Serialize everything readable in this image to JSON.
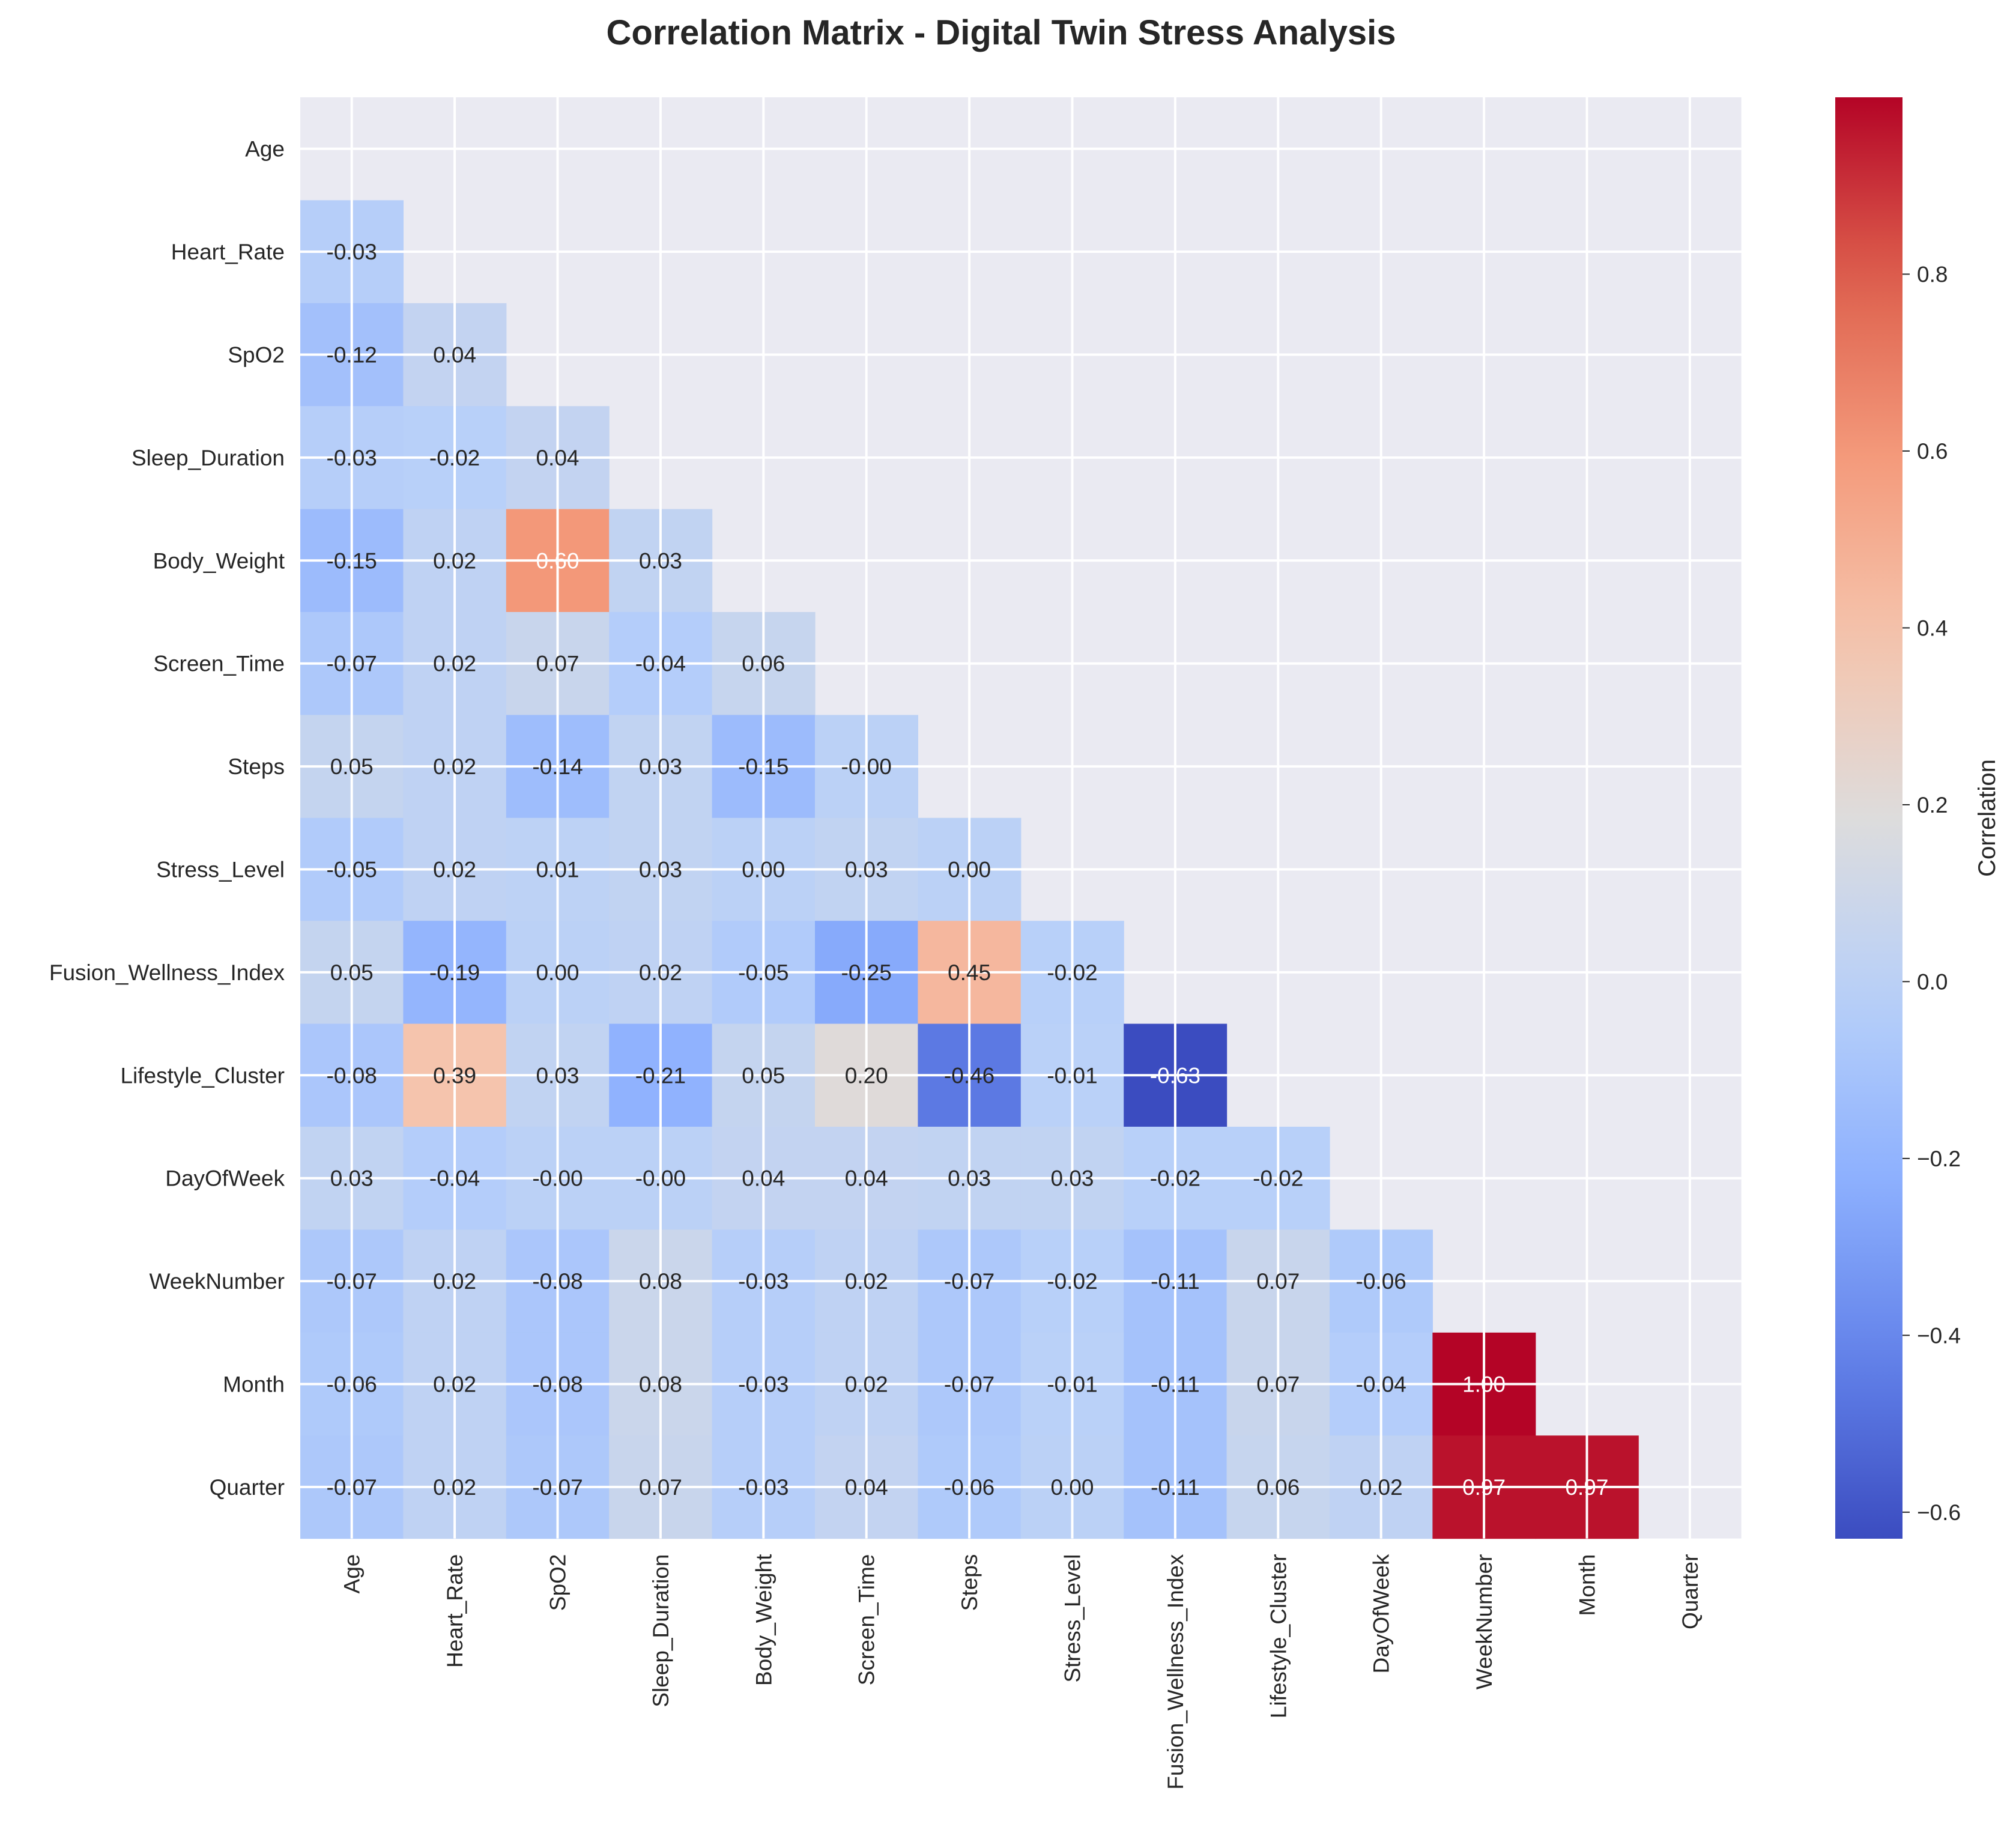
{
  "chart_data": {
    "type": "heatmap",
    "title": "Correlation Matrix - Digital Twin Stress Analysis",
    "variables": [
      "Age",
      "Heart_Rate",
      "SpO2",
      "Sleep_Duration",
      "Body_Weight",
      "Screen_Time",
      "Steps",
      "Stress_Level",
      "Fusion_Wellness_Index",
      "Lifestyle_Cluster",
      "DayOfWeek",
      "WeekNumber",
      "Month",
      "Quarter"
    ],
    "mask": "upper-triangle-and-diagonal",
    "rows": [
      [],
      [
        "-0.03"
      ],
      [
        "-0.12",
        "0.04"
      ],
      [
        "-0.03",
        "-0.02",
        "0.04"
      ],
      [
        "-0.15",
        "0.02",
        "0.60",
        "0.03"
      ],
      [
        "-0.07",
        "0.02",
        "0.07",
        "-0.04",
        "0.06"
      ],
      [
        "0.05",
        "0.02",
        "-0.14",
        "0.03",
        "-0.15",
        "-0.00"
      ],
      [
        "-0.05",
        "0.02",
        "0.01",
        "0.03",
        "0.00",
        "0.03",
        "0.00"
      ],
      [
        "0.05",
        "-0.19",
        "0.00",
        "0.02",
        "-0.05",
        "-0.25",
        "0.45",
        "-0.02"
      ],
      [
        "-0.08",
        "0.39",
        "0.03",
        "-0.21",
        "0.05",
        "0.20",
        "-0.46",
        "-0.01",
        "-0.63"
      ],
      [
        "0.03",
        "-0.04",
        "-0.00",
        "-0.00",
        "0.04",
        "0.04",
        "0.03",
        "0.03",
        "-0.02",
        "-0.02"
      ],
      [
        "-0.07",
        "0.02",
        "-0.08",
        "0.08",
        "-0.03",
        "0.02",
        "-0.07",
        "-0.02",
        "-0.11",
        "0.07",
        "-0.06"
      ],
      [
        "-0.06",
        "0.02",
        "-0.08",
        "0.08",
        "-0.03",
        "0.02",
        "-0.07",
        "-0.01",
        "-0.11",
        "0.07",
        "-0.04",
        "1.00"
      ],
      [
        "-0.07",
        "0.02",
        "-0.07",
        "0.07",
        "-0.03",
        "0.04",
        "-0.06",
        "0.00",
        "-0.11",
        "0.06",
        "0.02",
        "0.97",
        "0.97"
      ]
    ],
    "colorbar": {
      "label": "Correlation",
      "vmin": -0.63,
      "vmax": 1.0,
      "ticks": [
        "−0.6",
        "−0.4",
        "−0.2",
        "0.0",
        "0.2",
        "0.4",
        "0.6",
        "0.8"
      ],
      "colormap": "coolwarm"
    },
    "background": "#eaeaf2",
    "grid": true
  }
}
